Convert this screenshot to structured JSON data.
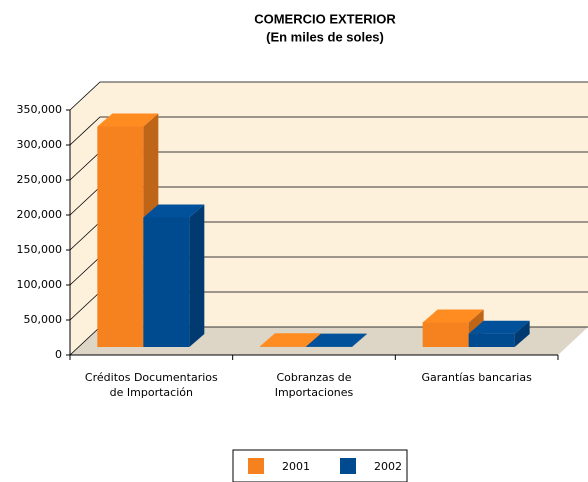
{
  "chart_data": {
    "type": "bar3d",
    "title": "COMERCIO EXTERIOR",
    "subtitle": "(En miles de soles)",
    "categories": [
      "Créditos Documentarios de Importación",
      "Cobranzas de Importaciones",
      "Garantías bancarias"
    ],
    "series": [
      {
        "name": "2001",
        "color": "#f5821f",
        "values": [
          315000,
          1000,
          35000
        ]
      },
      {
        "name": "2002",
        "color": "#004a8f",
        "values": [
          185000,
          500,
          19000
        ]
      }
    ],
    "ylim": [
      0,
      350000
    ],
    "yticks": [
      0,
      {
        "value": 50000,
        "label": "50,000"
      },
      {
        "value": 100000,
        "label": "100,000"
      },
      {
        "value": 150000,
        "label": "150,000"
      },
      {
        "value": 200000,
        "label": "200,000"
      },
      {
        "value": 250000,
        "label": "250,000"
      },
      {
        "value": 300000,
        "label": "300,000"
      },
      {
        "value": 350000,
        "label": "350,000"
      }
    ],
    "grid": true,
    "legend": "bottom"
  }
}
